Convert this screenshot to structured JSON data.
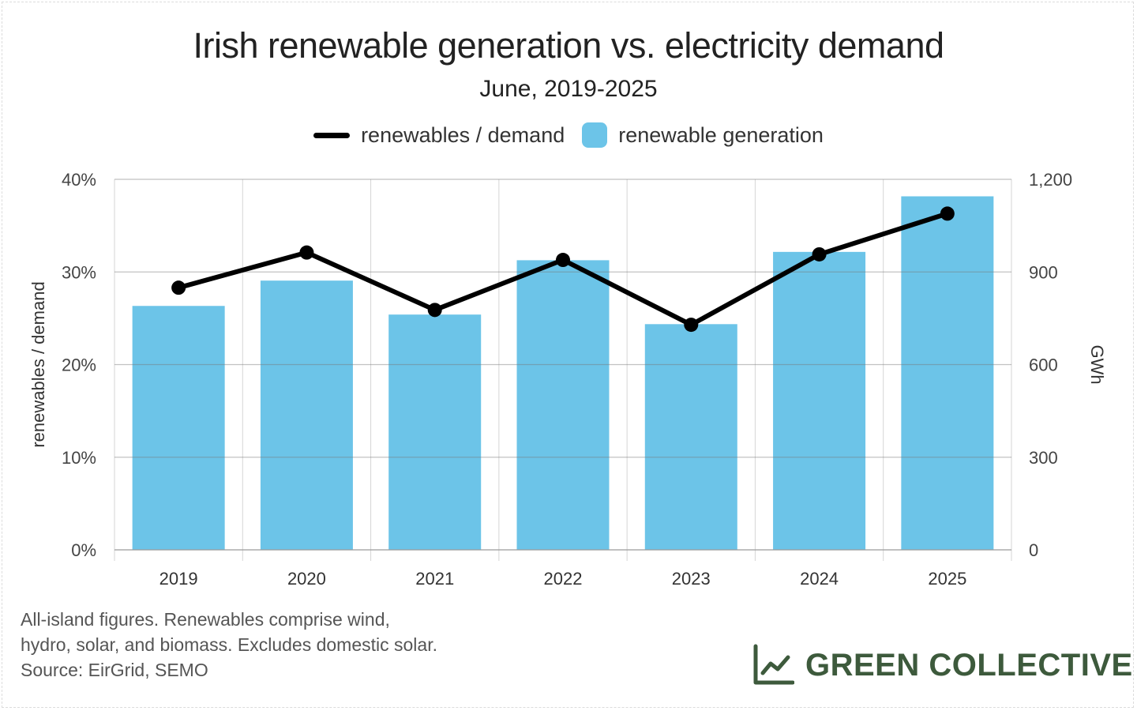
{
  "title": "Irish renewable generation vs. electricity demand",
  "subtitle": "June, 2019-2025",
  "legend": {
    "line_label": "renewables / demand",
    "bar_label": "renewable generation"
  },
  "colors": {
    "bar": "#6cc4e8",
    "line": "#000000",
    "brand": "#3d5a3c"
  },
  "chart_data": {
    "type": "bar",
    "categories": [
      "2019",
      "2020",
      "2021",
      "2022",
      "2023",
      "2024",
      "2025"
    ],
    "series": [
      {
        "name": "renewable generation",
        "type": "bar",
        "axis": "right",
        "values": [
          790,
          872,
          762,
          938,
          731,
          965,
          1145
        ]
      },
      {
        "name": "renewables / demand",
        "type": "line",
        "axis": "left",
        "values": [
          28.3,
          32.1,
          25.9,
          31.3,
          24.3,
          31.9,
          36.3
        ]
      }
    ],
    "ylabel_left": "renewables / demand",
    "ylabel_right": "GWh",
    "ylim_left": [
      0,
      40
    ],
    "ylim_right": [
      0,
      1200
    ],
    "yticks_left": [
      "0%",
      "10%",
      "20%",
      "30%",
      "40%"
    ],
    "yticks_right": [
      "0",
      "300",
      "600",
      "900",
      "1,200"
    ],
    "grid": true,
    "legend_position": "top-center"
  },
  "footnote": {
    "line1": "All-island figures. Renewables comprise wind,",
    "line2": "hydro, solar, and biomass. Excludes domestic solar.",
    "line3": "Source: EirGrid, SEMO"
  },
  "brand": {
    "name": "GREEN COLLECTIVE",
    "icon": "line-chart-icon"
  }
}
